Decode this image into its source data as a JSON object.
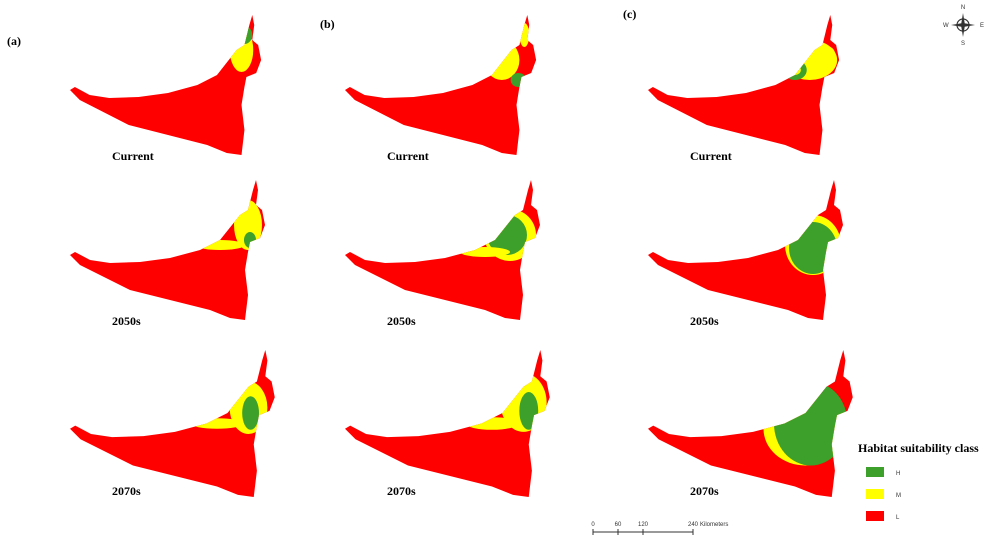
{
  "panels": [
    {
      "label": "(a)",
      "maps": [
        {
          "period": "Current"
        },
        {
          "period": "2050s"
        },
        {
          "period": "2070s"
        }
      ]
    },
    {
      "label": "(b)",
      "maps": [
        {
          "period": "Current"
        },
        {
          "period": "2050s"
        },
        {
          "period": "2070s"
        }
      ]
    },
    {
      "label": "(c)",
      "maps": [
        {
          "period": "Current"
        },
        {
          "period": "2050s"
        },
        {
          "period": "2070s"
        }
      ]
    }
  ],
  "legend": {
    "title": "Habitat suitability class",
    "items": [
      "H",
      "M",
      "L"
    ]
  },
  "scale_bar": {
    "labels": [
      "0",
      "60",
      "120",
      "240"
    ],
    "unit": "Kilometers"
  },
  "compass": {
    "n": "N",
    "s": "S",
    "e": "E",
    "w": "W"
  }
}
